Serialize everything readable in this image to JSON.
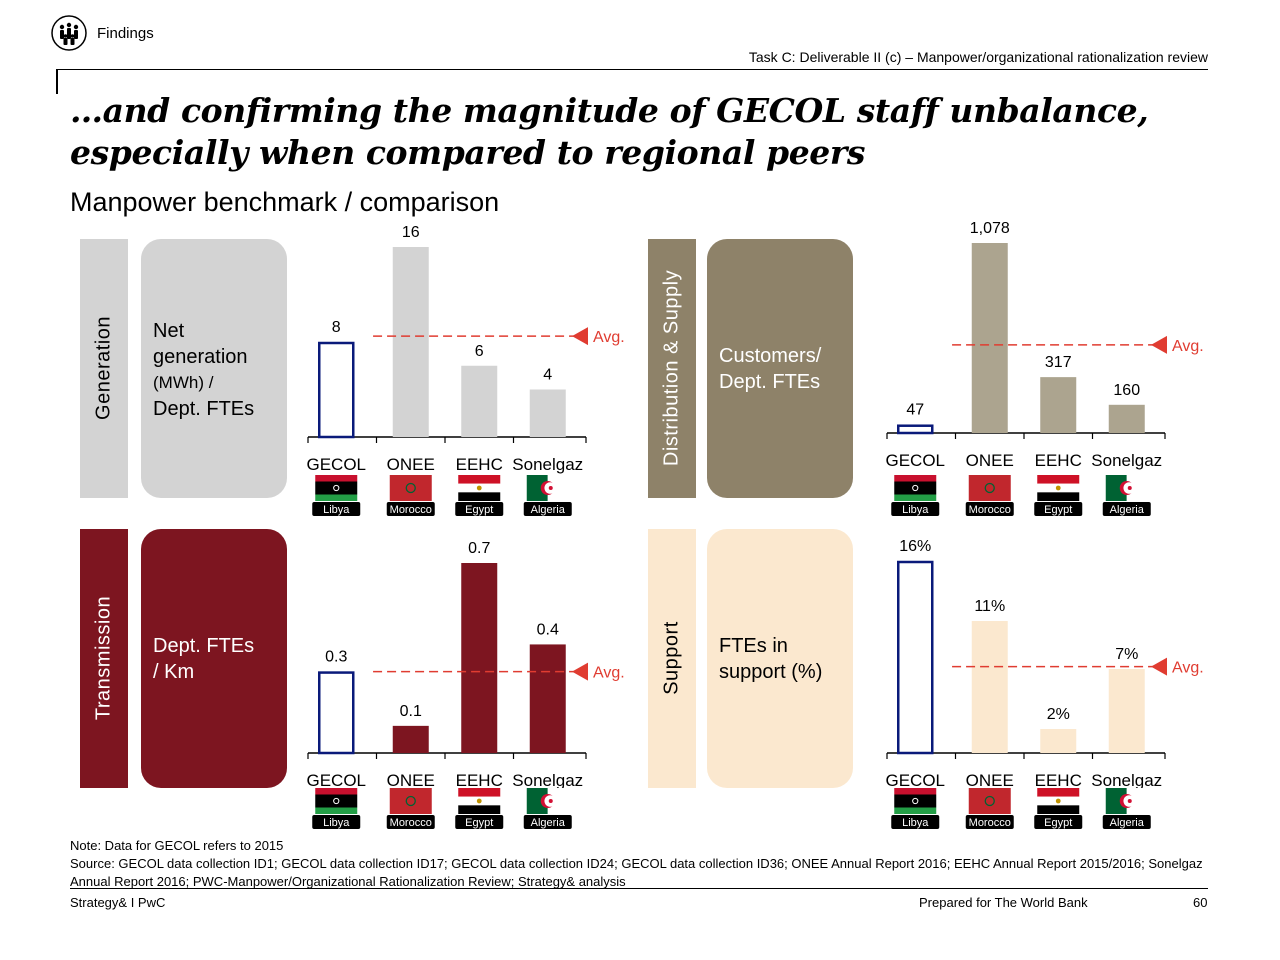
{
  "header": {
    "section": "Findings",
    "task": "Task C: Deliverable II (c) – Manpower/organizational rationalization review"
  },
  "title": "…and confirming the magnitude of GECOL staff unbalance, especially when compared to regional peers",
  "subtitle": "Manpower benchmark / comparison",
  "colors": {
    "generation": "#d3d3d3",
    "transmission": "#7d1520",
    "distribution": "#8e8269",
    "distribution_bar": "#aca48f",
    "support": "#fbe8cf",
    "gecol_outline": "#0a1a7a",
    "avg_line": "#e03c31"
  },
  "panels": {
    "generation": {
      "category": "Generation",
      "metric": [
        "Net",
        "generation",
        "(MWh) /",
        "Dept. FTEs"
      ]
    },
    "transmission": {
      "category": "Transmission",
      "metric": [
        "Dept. FTEs",
        "/ Km"
      ]
    },
    "distribution": {
      "category": "Distribution & Supply",
      "metric": [
        "Customers/",
        "Dept. FTEs"
      ]
    },
    "support": {
      "category": "Support",
      "metric": [
        "FTEs in",
        "support (%)"
      ]
    }
  },
  "chart_data": [
    {
      "type": "bar",
      "name": "Net generation (MWh) / Dept. FTEs",
      "categories": [
        "GECOL",
        "ONEE",
        "EEHC",
        "Sonelgaz"
      ],
      "countries": [
        "Libya",
        "Morocco",
        "Egypt",
        "Algeria"
      ],
      "values": [
        8,
        16,
        6,
        4
      ],
      "labels": [
        "8",
        "16",
        "6",
        "4"
      ],
      "average": 8.5,
      "avg_label": "Avg.",
      "ylim": [
        0,
        16
      ]
    },
    {
      "type": "bar",
      "name": "Customers / Dept. FTEs",
      "categories": [
        "GECOL",
        "ONEE",
        "EEHC",
        "Sonelgaz"
      ],
      "countries": [
        "Libya",
        "Morocco",
        "Egypt",
        "Algeria"
      ],
      "values": [
        47,
        1078,
        317,
        160
      ],
      "labels": [
        "47",
        "1,078",
        "317",
        "160"
      ],
      "average": 500,
      "avg_label": "Avg.",
      "ylim": [
        0,
        1078
      ]
    },
    {
      "type": "bar",
      "name": "Dept. FTEs / Km",
      "categories": [
        "GECOL",
        "ONEE",
        "EEHC",
        "Sonelgaz"
      ],
      "countries": [
        "Libya",
        "Morocco",
        "Egypt",
        "Algeria"
      ],
      "values": [
        0.3,
        0.1,
        0.7,
        0.4
      ],
      "labels": [
        "0.3",
        "0.1",
        "0.7",
        "0.4"
      ],
      "average": 0.3,
      "avg_label": "Avg.",
      "ylim": [
        0,
        0.7
      ]
    },
    {
      "type": "bar",
      "name": "FTEs in support (%)",
      "categories": [
        "GECOL",
        "ONEE",
        "EEHC",
        "Sonelgaz"
      ],
      "countries": [
        "Libya",
        "Morocco",
        "Egypt",
        "Algeria"
      ],
      "values": [
        16,
        11,
        2,
        7
      ],
      "labels": [
        "16%",
        "11%",
        "2%",
        "7%"
      ],
      "average": 7.2,
      "avg_label": "Avg.",
      "ylim": [
        0,
        16
      ]
    }
  ],
  "footnotes": {
    "note": "Note: Data for GECOL refers to 2015",
    "source": "Source: GECOL data collection ID1; GECOL data collection ID17; GECOL data collection ID24; GECOL data collection ID36; ONEE Annual Report 2016; EEHC Annual Report 2015/2016; Sonelgaz Annual Report 2016; PWC-Manpower/Organizational Rationalization Review; Strategy& analysis"
  },
  "footer": {
    "left": "Strategy& I PwC",
    "prepared": "Prepared for The World Bank",
    "page": "60"
  }
}
